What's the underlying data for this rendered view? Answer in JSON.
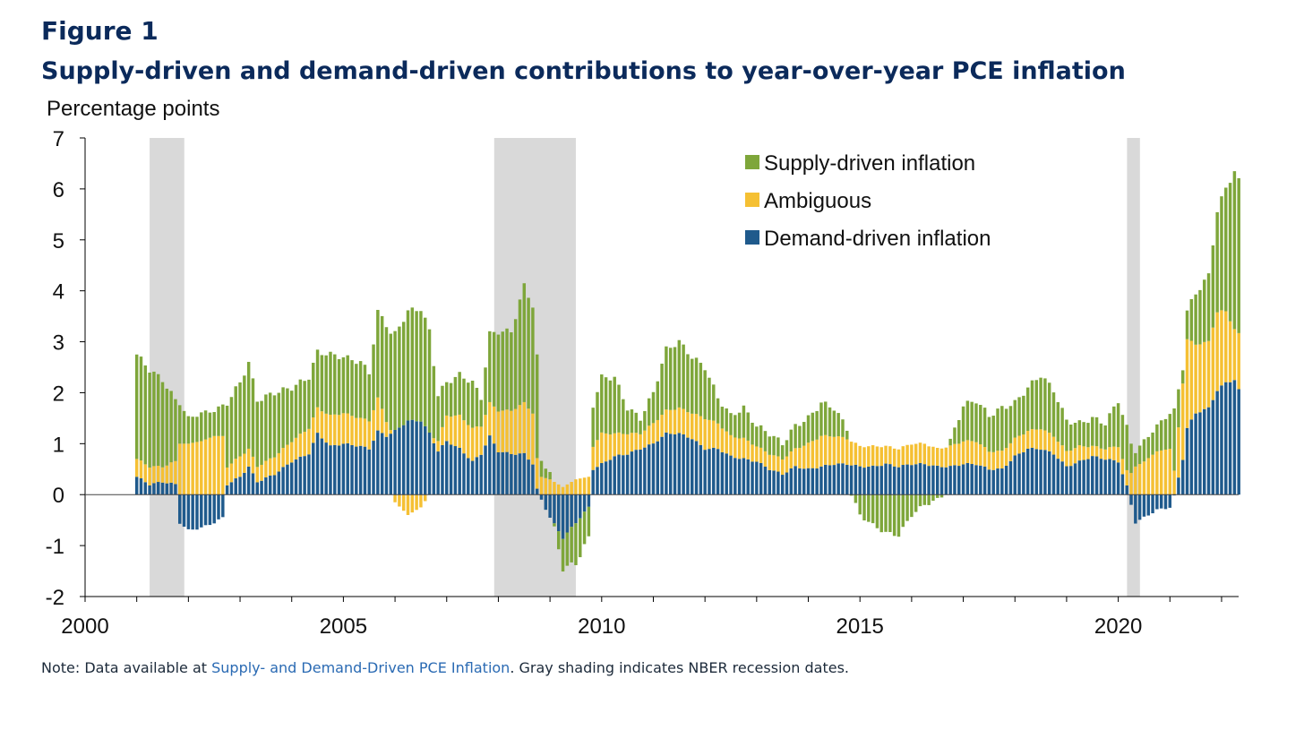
{
  "figure_label": "Figure 1",
  "title": "Supply-driven and demand-driven contributions to year-over-year PCE inflation",
  "note": {
    "prefix": "Note: Data available at ",
    "link_text": "Supply- and Demand-Driven PCE Inflation",
    "suffix": ". Gray shading indicates NBER recession dates."
  },
  "colors": {
    "supply": "#7ea63a",
    "ambiguous": "#f5c033",
    "demand": "#1f5a8c",
    "recession": "#d9d9d9",
    "axis": "#000000",
    "title": "#0b2a5b",
    "link": "#2a6ab3"
  },
  "chart_data": {
    "type": "bar",
    "stacked": true,
    "ylabel": "Percentage points",
    "ylim": [
      -2,
      7
    ],
    "yticks": [
      "7",
      "6",
      "5",
      "4",
      "3",
      "2",
      "1",
      "0",
      "-1",
      "-2"
    ],
    "ytick_values": [
      7,
      6,
      5,
      4,
      3,
      2,
      1,
      0,
      -1,
      -2
    ],
    "xlim": [
      2000,
      2022.33
    ],
    "xticks": [
      "2000",
      "2005",
      "2010",
      "2015",
      "2020"
    ],
    "xtick_values": [
      2000,
      2005,
      2010,
      2015,
      2020
    ],
    "legend_position": "top-right",
    "grid": false,
    "recessions": [
      [
        2001.25,
        2001.92
      ],
      [
        2007.92,
        2009.5
      ],
      [
        2020.17,
        2020.42
      ]
    ],
    "keyframes": [
      {
        "t": 2001.0,
        "demand": 0.35,
        "ambiguous": 0.35,
        "supply": 2.05
      },
      {
        "t": 2001.25,
        "demand": 0.2,
        "ambiguous": 0.35,
        "supply": 1.9
      },
      {
        "t": 2001.5,
        "demand": 0.25,
        "ambiguous": 0.3,
        "supply": 1.7
      },
      {
        "t": 2001.75,
        "demand": 0.2,
        "ambiguous": 0.45,
        "supply": 1.2
      },
      {
        "t": 2001.83,
        "demand": -0.55,
        "ambiguous": 1.0,
        "supply": 0.8
      },
      {
        "t": 2002.0,
        "demand": -0.7,
        "ambiguous": 1.0,
        "supply": 0.5
      },
      {
        "t": 2002.25,
        "demand": -0.65,
        "ambiguous": 1.05,
        "supply": 0.55
      },
      {
        "t": 2002.5,
        "demand": -0.55,
        "ambiguous": 1.15,
        "supply": 0.5
      },
      {
        "t": 2002.67,
        "demand": -0.45,
        "ambiguous": 1.15,
        "supply": 0.6
      },
      {
        "t": 2002.75,
        "demand": 0.2,
        "ambiguous": 0.35,
        "supply": 1.25
      },
      {
        "t": 2003.0,
        "demand": 0.35,
        "ambiguous": 0.4,
        "supply": 1.45
      },
      {
        "t": 2003.17,
        "demand": 0.55,
        "ambiguous": 0.35,
        "supply": 1.7
      },
      {
        "t": 2003.33,
        "demand": 0.25,
        "ambiguous": 0.3,
        "supply": 1.3
      },
      {
        "t": 2003.67,
        "demand": 0.4,
        "ambiguous": 0.35,
        "supply": 1.25
      },
      {
        "t": 2004.0,
        "demand": 0.65,
        "ambiguous": 0.4,
        "supply": 1.05
      },
      {
        "t": 2004.33,
        "demand": 0.8,
        "ambiguous": 0.5,
        "supply": 1.0
      },
      {
        "t": 2004.5,
        "demand": 1.2,
        "ambiguous": 0.5,
        "supply": 1.1
      },
      {
        "t": 2004.75,
        "demand": 0.95,
        "ambiguous": 0.6,
        "supply": 1.2
      },
      {
        "t": 2005.0,
        "demand": 1.0,
        "ambiguous": 0.6,
        "supply": 1.1
      },
      {
        "t": 2005.33,
        "demand": 0.95,
        "ambiguous": 0.55,
        "supply": 1.1
      },
      {
        "t": 2005.5,
        "demand": 0.9,
        "ambiguous": 0.55,
        "supply": 0.95
      },
      {
        "t": 2005.67,
        "demand": 1.25,
        "ambiguous": 0.65,
        "supply": 1.7
      },
      {
        "t": 2005.83,
        "demand": 1.15,
        "ambiguous": 0.3,
        "supply": 1.9
      },
      {
        "t": 2006.0,
        "demand": 1.25,
        "ambiguous": -0.15,
        "supply": 1.9
      },
      {
        "t": 2006.25,
        "demand": 1.45,
        "ambiguous": -0.4,
        "supply": 2.15
      },
      {
        "t": 2006.5,
        "demand": 1.45,
        "ambiguous": -0.25,
        "supply": 2.2
      },
      {
        "t": 2006.67,
        "demand": 1.2,
        "ambiguous": 0.0,
        "supply": 2.0
      },
      {
        "t": 2006.83,
        "demand": 0.85,
        "ambiguous": 0.2,
        "supply": 0.9
      },
      {
        "t": 2007.0,
        "demand": 1.05,
        "ambiguous": 0.5,
        "supply": 0.65
      },
      {
        "t": 2007.25,
        "demand": 0.9,
        "ambiguous": 0.65,
        "supply": 0.8
      },
      {
        "t": 2007.5,
        "demand": 0.65,
        "ambiguous": 0.65,
        "supply": 0.9
      },
      {
        "t": 2007.67,
        "demand": 0.8,
        "ambiguous": 0.55,
        "supply": 0.55
      },
      {
        "t": 2007.83,
        "demand": 1.15,
        "ambiguous": 0.65,
        "supply": 1.35
      },
      {
        "t": 2008.0,
        "demand": 0.85,
        "ambiguous": 0.8,
        "supply": 1.55
      },
      {
        "t": 2008.25,
        "demand": 0.8,
        "ambiguous": 0.85,
        "supply": 1.55
      },
      {
        "t": 2008.5,
        "demand": 0.8,
        "ambiguous": 1.0,
        "supply": 2.3
      },
      {
        "t": 2008.67,
        "demand": 0.6,
        "ambiguous": 1.0,
        "supply": 2.1
      },
      {
        "t": 2008.75,
        "demand": 0.1,
        "ambiguous": 0.6,
        "supply": 2.0
      },
      {
        "t": 2008.83,
        "demand": -0.1,
        "ambiguous": 0.35,
        "supply": 0.3
      },
      {
        "t": 2009.0,
        "demand": -0.45,
        "ambiguous": 0.3,
        "supply": 0.15
      },
      {
        "t": 2009.25,
        "demand": -0.85,
        "ambiguous": 0.15,
        "supply": -0.6
      },
      {
        "t": 2009.5,
        "demand": -0.55,
        "ambiguous": 0.3,
        "supply": -0.8
      },
      {
        "t": 2009.75,
        "demand": -0.25,
        "ambiguous": 0.35,
        "supply": -0.6
      },
      {
        "t": 2009.83,
        "demand": 0.5,
        "ambiguous": 0.45,
        "supply": 0.8
      },
      {
        "t": 2010.0,
        "demand": 0.6,
        "ambiguous": 0.6,
        "supply": 1.1
      },
      {
        "t": 2010.25,
        "demand": 0.75,
        "ambiguous": 0.45,
        "supply": 1.1
      },
      {
        "t": 2010.5,
        "demand": 0.8,
        "ambiguous": 0.4,
        "supply": 0.5
      },
      {
        "t": 2010.75,
        "demand": 0.9,
        "ambiguous": 0.3,
        "supply": 0.3
      },
      {
        "t": 2011.0,
        "demand": 1.0,
        "ambiguous": 0.4,
        "supply": 0.6
      },
      {
        "t": 2011.25,
        "demand": 1.2,
        "ambiguous": 0.45,
        "supply": 1.2
      },
      {
        "t": 2011.5,
        "demand": 1.2,
        "ambiguous": 0.5,
        "supply": 1.3
      },
      {
        "t": 2011.75,
        "demand": 1.1,
        "ambiguous": 0.5,
        "supply": 1.1
      },
      {
        "t": 2012.0,
        "demand": 0.9,
        "ambiguous": 0.6,
        "supply": 1.0
      },
      {
        "t": 2012.25,
        "demand": 0.9,
        "ambiguous": 0.5,
        "supply": 0.5
      },
      {
        "t": 2012.5,
        "demand": 0.75,
        "ambiguous": 0.4,
        "supply": 0.4
      },
      {
        "t": 2012.75,
        "demand": 0.7,
        "ambiguous": 0.4,
        "supply": 0.6
      },
      {
        "t": 2013.0,
        "demand": 0.65,
        "ambiguous": 0.3,
        "supply": 0.4
      },
      {
        "t": 2013.25,
        "demand": 0.5,
        "ambiguous": 0.3,
        "supply": 0.4
      },
      {
        "t": 2013.5,
        "demand": 0.4,
        "ambiguous": 0.3,
        "supply": 0.3
      },
      {
        "t": 2013.75,
        "demand": 0.55,
        "ambiguous": 0.35,
        "supply": 0.45
      },
      {
        "t": 2014.0,
        "demand": 0.5,
        "ambiguous": 0.5,
        "supply": 0.5
      },
      {
        "t": 2014.25,
        "demand": 0.55,
        "ambiguous": 0.6,
        "supply": 0.65
      },
      {
        "t": 2014.5,
        "demand": 0.6,
        "ambiguous": 0.55,
        "supply": 0.55
      },
      {
        "t": 2014.75,
        "demand": 0.6,
        "ambiguous": 0.5,
        "supply": 0.2
      },
      {
        "t": 2015.0,
        "demand": 0.55,
        "ambiguous": 0.4,
        "supply": -0.4
      },
      {
        "t": 2015.25,
        "demand": 0.55,
        "ambiguous": 0.4,
        "supply": -0.6
      },
      {
        "t": 2015.5,
        "demand": 0.6,
        "ambiguous": 0.35,
        "supply": -0.75
      },
      {
        "t": 2015.75,
        "demand": 0.55,
        "ambiguous": 0.35,
        "supply": -0.8
      },
      {
        "t": 2016.0,
        "demand": 0.6,
        "ambiguous": 0.4,
        "supply": -0.4
      },
      {
        "t": 2016.25,
        "demand": 0.6,
        "ambiguous": 0.4,
        "supply": -0.2
      },
      {
        "t": 2016.5,
        "demand": 0.55,
        "ambiguous": 0.35,
        "supply": -0.1
      },
      {
        "t": 2016.75,
        "demand": 0.55,
        "ambiguous": 0.4,
        "supply": 0.1
      },
      {
        "t": 2017.0,
        "demand": 0.6,
        "ambiguous": 0.45,
        "supply": 0.7
      },
      {
        "t": 2017.25,
        "demand": 0.6,
        "ambiguous": 0.45,
        "supply": 0.8
      },
      {
        "t": 2017.5,
        "demand": 0.5,
        "ambiguous": 0.35,
        "supply": 0.7
      },
      {
        "t": 2017.75,
        "demand": 0.5,
        "ambiguous": 0.35,
        "supply": 0.85
      },
      {
        "t": 2018.0,
        "demand": 0.75,
        "ambiguous": 0.35,
        "supply": 0.7
      },
      {
        "t": 2018.25,
        "demand": 0.9,
        "ambiguous": 0.35,
        "supply": 0.85
      },
      {
        "t": 2018.5,
        "demand": 0.9,
        "ambiguous": 0.4,
        "supply": 1.05
      },
      {
        "t": 2018.75,
        "demand": 0.8,
        "ambiguous": 0.35,
        "supply": 0.9
      },
      {
        "t": 2019.0,
        "demand": 0.55,
        "ambiguous": 0.3,
        "supply": 0.6
      },
      {
        "t": 2019.25,
        "demand": 0.65,
        "ambiguous": 0.3,
        "supply": 0.45
      },
      {
        "t": 2019.5,
        "demand": 0.75,
        "ambiguous": 0.2,
        "supply": 0.55
      },
      {
        "t": 2019.75,
        "demand": 0.7,
        "ambiguous": 0.2,
        "supply": 0.5
      },
      {
        "t": 2020.0,
        "demand": 0.65,
        "ambiguous": 0.3,
        "supply": 0.9
      },
      {
        "t": 2020.17,
        "demand": 0.15,
        "ambiguous": 0.3,
        "supply": 0.85
      },
      {
        "t": 2020.33,
        "demand": -0.55,
        "ambiguous": 0.55,
        "supply": 0.3
      },
      {
        "t": 2020.5,
        "demand": -0.45,
        "ambiguous": 0.65,
        "supply": 0.4
      },
      {
        "t": 2020.75,
        "demand": -0.3,
        "ambiguous": 0.85,
        "supply": 0.5
      },
      {
        "t": 2021.0,
        "demand": -0.25,
        "ambiguous": 0.9,
        "supply": 0.7
      },
      {
        "t": 2021.08,
        "demand": -0.05,
        "ambiguous": 0.45,
        "supply": 1.2
      },
      {
        "t": 2021.25,
        "demand": 0.7,
        "ambiguous": 1.5,
        "supply": 0.3
      },
      {
        "t": 2021.33,
        "demand": 1.3,
        "ambiguous": 1.75,
        "supply": 0.55
      },
      {
        "t": 2021.5,
        "demand": 1.6,
        "ambiguous": 1.35,
        "supply": 1.0
      },
      {
        "t": 2021.75,
        "demand": 1.7,
        "ambiguous": 1.3,
        "supply": 1.3
      },
      {
        "t": 2021.92,
        "demand": 2.05,
        "ambiguous": 1.55,
        "supply": 2.0
      },
      {
        "t": 2022.08,
        "demand": 2.2,
        "ambiguous": 1.4,
        "supply": 2.4
      },
      {
        "t": 2022.25,
        "demand": 2.25,
        "ambiguous": 1.0,
        "supply": 3.1
      },
      {
        "t": 2022.33,
        "demand": 2.05,
        "ambiguous": 1.1,
        "supply": 3.0
      }
    ],
    "series": [
      {
        "name": "Supply-driven inflation",
        "key": "supply"
      },
      {
        "name": "Ambiguous",
        "key": "ambiguous"
      },
      {
        "name": "Demand-driven inflation",
        "key": "demand"
      }
    ]
  }
}
